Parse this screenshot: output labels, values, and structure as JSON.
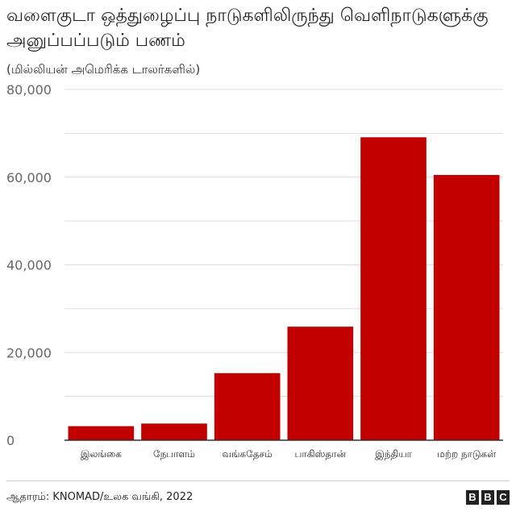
{
  "header": {
    "title": "வளைகுடா ஒத்துழைப்பு நாடுகளிலிருந்து வெளிநாடுகளுக்கு அனுப்பப்படும் பணம்",
    "subtitle": "(மில்லியன் அமெரிக்க டாலர்களில்)"
  },
  "footer": {
    "source": "ஆதாரம்: KNOMAD/உலக வங்கி, 2022",
    "logo_letters": [
      "B",
      "B",
      "C"
    ]
  },
  "colors": {
    "bar": "#c20000",
    "grid": "#dddddd",
    "baseline": "#333333"
  },
  "chart_data": {
    "type": "bar",
    "categories": [
      "இலங்கை",
      "நேபாளம்",
      "வங்கதேசம்",
      "பாகிஸ்தான்",
      "இந்தியா",
      "மற்ற நாடுகள்"
    ],
    "values": [
      3200,
      3800,
      15300,
      25900,
      69100,
      60500
    ],
    "ylim": [
      0,
      80000
    ],
    "yticks": [
      0,
      20000,
      40000,
      60000,
      80000
    ],
    "ytick_labels": [
      "0",
      "20,000",
      "40,000",
      "60,000",
      "80,000"
    ],
    "grid": true,
    "xlabel": "",
    "ylabel": ""
  }
}
